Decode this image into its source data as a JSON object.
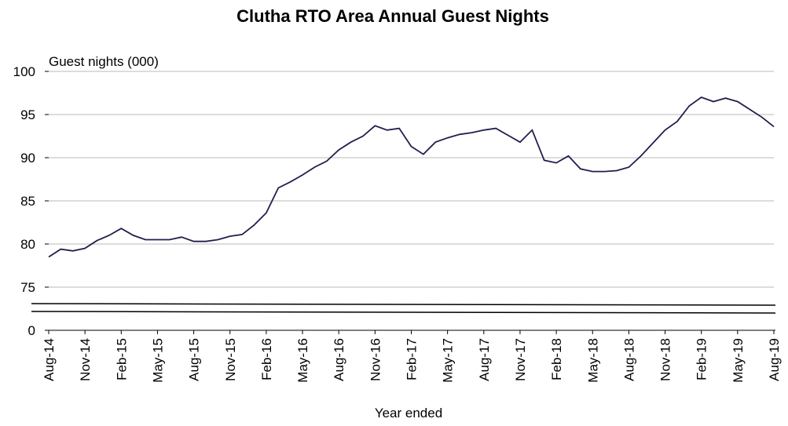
{
  "chart_data": {
    "type": "line",
    "title": "Clutha RTO Area Annual  Guest Nights",
    "y_label": "Guest nights (000)",
    "x_label": "Year ended",
    "categories": [
      "Aug-14",
      null,
      null,
      "Nov-14",
      null,
      null,
      "Feb-15",
      null,
      null,
      "May-15",
      null,
      null,
      "Aug-15",
      null,
      null,
      "Nov-15",
      null,
      null,
      "Feb-16",
      null,
      null,
      "May-16",
      null,
      null,
      "Aug-16",
      null,
      null,
      "Nov-16",
      null,
      null,
      "Feb-17",
      null,
      null,
      "May-17",
      null,
      null,
      "Aug-17",
      null,
      null,
      "Nov-17",
      null,
      null,
      "Feb-18",
      null,
      null,
      "May-18",
      null,
      null,
      "Aug-18",
      null,
      null,
      "Nov-18",
      null,
      null,
      "Feb-19",
      null,
      null,
      "May-19",
      null,
      null,
      "Aug-19"
    ],
    "values": [
      78.5,
      79.4,
      79.2,
      79.5,
      80.4,
      81.0,
      81.8,
      81.0,
      80.5,
      80.5,
      80.5,
      80.8,
      80.3,
      80.3,
      80.5,
      80.9,
      81.1,
      82.2,
      83.6,
      86.5,
      87.2,
      88.0,
      88.9,
      89.6,
      90.9,
      91.8,
      92.5,
      93.7,
      93.2,
      93.4,
      91.3,
      90.4,
      91.8,
      92.3,
      92.7,
      92.9,
      93.2,
      93.4,
      92.6,
      91.8,
      93.2,
      89.7,
      89.4,
      90.2,
      88.7,
      88.4,
      88.4,
      88.5,
      88.9,
      90.2,
      91.7,
      93.2,
      94.2,
      96.0,
      97.0,
      96.5,
      96.9,
      96.5,
      95.6,
      94.7,
      93.6
    ],
    "color": "#1f1f4f",
    "ylim": [
      0,
      100
    ],
    "yticks": [
      0,
      75,
      80,
      85,
      90,
      95,
      100
    ],
    "axis_break": true,
    "grid": true
  }
}
